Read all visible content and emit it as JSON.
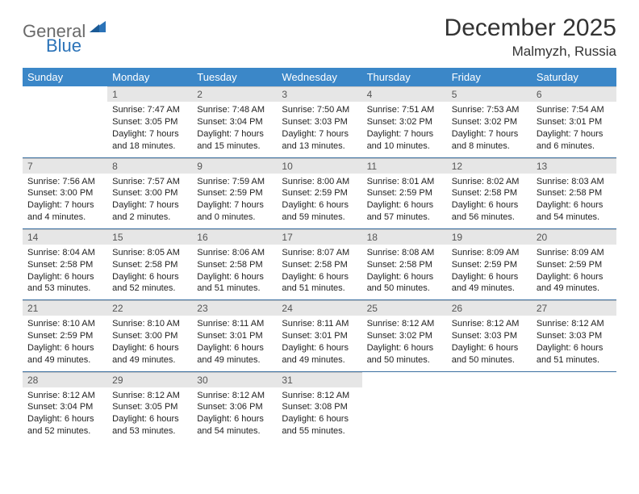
{
  "logo": {
    "part1": "General",
    "part2": "Blue"
  },
  "title": "December 2025",
  "location": "Malmyzh, Russia",
  "colors": {
    "header_bg": "#3b87c8",
    "header_text": "#ffffff",
    "daynum_bg": "#e6e6e6",
    "row_divider": "#3b6fa0",
    "logo_gray": "#6a6a6a",
    "logo_blue": "#2b73b8",
    "page_bg": "#ffffff"
  },
  "typography": {
    "title_fontsize": 30,
    "location_fontsize": 17,
    "dayheader_fontsize": 13,
    "body_fontsize": 11
  },
  "day_headers": [
    "Sunday",
    "Monday",
    "Tuesday",
    "Wednesday",
    "Thursday",
    "Friday",
    "Saturday"
  ],
  "weeks": [
    [
      null,
      {
        "n": "1",
        "sr": "Sunrise: 7:47 AM",
        "ss": "Sunset: 3:05 PM",
        "d1": "Daylight: 7 hours",
        "d2": "and 18 minutes."
      },
      {
        "n": "2",
        "sr": "Sunrise: 7:48 AM",
        "ss": "Sunset: 3:04 PM",
        "d1": "Daylight: 7 hours",
        "d2": "and 15 minutes."
      },
      {
        "n": "3",
        "sr": "Sunrise: 7:50 AM",
        "ss": "Sunset: 3:03 PM",
        "d1": "Daylight: 7 hours",
        "d2": "and 13 minutes."
      },
      {
        "n": "4",
        "sr": "Sunrise: 7:51 AM",
        "ss": "Sunset: 3:02 PM",
        "d1": "Daylight: 7 hours",
        "d2": "and 10 minutes."
      },
      {
        "n": "5",
        "sr": "Sunrise: 7:53 AM",
        "ss": "Sunset: 3:02 PM",
        "d1": "Daylight: 7 hours",
        "d2": "and 8 minutes."
      },
      {
        "n": "6",
        "sr": "Sunrise: 7:54 AM",
        "ss": "Sunset: 3:01 PM",
        "d1": "Daylight: 7 hours",
        "d2": "and 6 minutes."
      }
    ],
    [
      {
        "n": "7",
        "sr": "Sunrise: 7:56 AM",
        "ss": "Sunset: 3:00 PM",
        "d1": "Daylight: 7 hours",
        "d2": "and 4 minutes."
      },
      {
        "n": "8",
        "sr": "Sunrise: 7:57 AM",
        "ss": "Sunset: 3:00 PM",
        "d1": "Daylight: 7 hours",
        "d2": "and 2 minutes."
      },
      {
        "n": "9",
        "sr": "Sunrise: 7:59 AM",
        "ss": "Sunset: 2:59 PM",
        "d1": "Daylight: 7 hours",
        "d2": "and 0 minutes."
      },
      {
        "n": "10",
        "sr": "Sunrise: 8:00 AM",
        "ss": "Sunset: 2:59 PM",
        "d1": "Daylight: 6 hours",
        "d2": "and 59 minutes."
      },
      {
        "n": "11",
        "sr": "Sunrise: 8:01 AM",
        "ss": "Sunset: 2:59 PM",
        "d1": "Daylight: 6 hours",
        "d2": "and 57 minutes."
      },
      {
        "n": "12",
        "sr": "Sunrise: 8:02 AM",
        "ss": "Sunset: 2:58 PM",
        "d1": "Daylight: 6 hours",
        "d2": "and 56 minutes."
      },
      {
        "n": "13",
        "sr": "Sunrise: 8:03 AM",
        "ss": "Sunset: 2:58 PM",
        "d1": "Daylight: 6 hours",
        "d2": "and 54 minutes."
      }
    ],
    [
      {
        "n": "14",
        "sr": "Sunrise: 8:04 AM",
        "ss": "Sunset: 2:58 PM",
        "d1": "Daylight: 6 hours",
        "d2": "and 53 minutes."
      },
      {
        "n": "15",
        "sr": "Sunrise: 8:05 AM",
        "ss": "Sunset: 2:58 PM",
        "d1": "Daylight: 6 hours",
        "d2": "and 52 minutes."
      },
      {
        "n": "16",
        "sr": "Sunrise: 8:06 AM",
        "ss": "Sunset: 2:58 PM",
        "d1": "Daylight: 6 hours",
        "d2": "and 51 minutes."
      },
      {
        "n": "17",
        "sr": "Sunrise: 8:07 AM",
        "ss": "Sunset: 2:58 PM",
        "d1": "Daylight: 6 hours",
        "d2": "and 51 minutes."
      },
      {
        "n": "18",
        "sr": "Sunrise: 8:08 AM",
        "ss": "Sunset: 2:58 PM",
        "d1": "Daylight: 6 hours",
        "d2": "and 50 minutes."
      },
      {
        "n": "19",
        "sr": "Sunrise: 8:09 AM",
        "ss": "Sunset: 2:59 PM",
        "d1": "Daylight: 6 hours",
        "d2": "and 49 minutes."
      },
      {
        "n": "20",
        "sr": "Sunrise: 8:09 AM",
        "ss": "Sunset: 2:59 PM",
        "d1": "Daylight: 6 hours",
        "d2": "and 49 minutes."
      }
    ],
    [
      {
        "n": "21",
        "sr": "Sunrise: 8:10 AM",
        "ss": "Sunset: 2:59 PM",
        "d1": "Daylight: 6 hours",
        "d2": "and 49 minutes."
      },
      {
        "n": "22",
        "sr": "Sunrise: 8:10 AM",
        "ss": "Sunset: 3:00 PM",
        "d1": "Daylight: 6 hours",
        "d2": "and 49 minutes."
      },
      {
        "n": "23",
        "sr": "Sunrise: 8:11 AM",
        "ss": "Sunset: 3:01 PM",
        "d1": "Daylight: 6 hours",
        "d2": "and 49 minutes."
      },
      {
        "n": "24",
        "sr": "Sunrise: 8:11 AM",
        "ss": "Sunset: 3:01 PM",
        "d1": "Daylight: 6 hours",
        "d2": "and 49 minutes."
      },
      {
        "n": "25",
        "sr": "Sunrise: 8:12 AM",
        "ss": "Sunset: 3:02 PM",
        "d1": "Daylight: 6 hours",
        "d2": "and 50 minutes."
      },
      {
        "n": "26",
        "sr": "Sunrise: 8:12 AM",
        "ss": "Sunset: 3:03 PM",
        "d1": "Daylight: 6 hours",
        "d2": "and 50 minutes."
      },
      {
        "n": "27",
        "sr": "Sunrise: 8:12 AM",
        "ss": "Sunset: 3:03 PM",
        "d1": "Daylight: 6 hours",
        "d2": "and 51 minutes."
      }
    ],
    [
      {
        "n": "28",
        "sr": "Sunrise: 8:12 AM",
        "ss": "Sunset: 3:04 PM",
        "d1": "Daylight: 6 hours",
        "d2": "and 52 minutes."
      },
      {
        "n": "29",
        "sr": "Sunrise: 8:12 AM",
        "ss": "Sunset: 3:05 PM",
        "d1": "Daylight: 6 hours",
        "d2": "and 53 minutes."
      },
      {
        "n": "30",
        "sr": "Sunrise: 8:12 AM",
        "ss": "Sunset: 3:06 PM",
        "d1": "Daylight: 6 hours",
        "d2": "and 54 minutes."
      },
      {
        "n": "31",
        "sr": "Sunrise: 8:12 AM",
        "ss": "Sunset: 3:08 PM",
        "d1": "Daylight: 6 hours",
        "d2": "and 55 minutes."
      },
      null,
      null,
      null
    ]
  ]
}
